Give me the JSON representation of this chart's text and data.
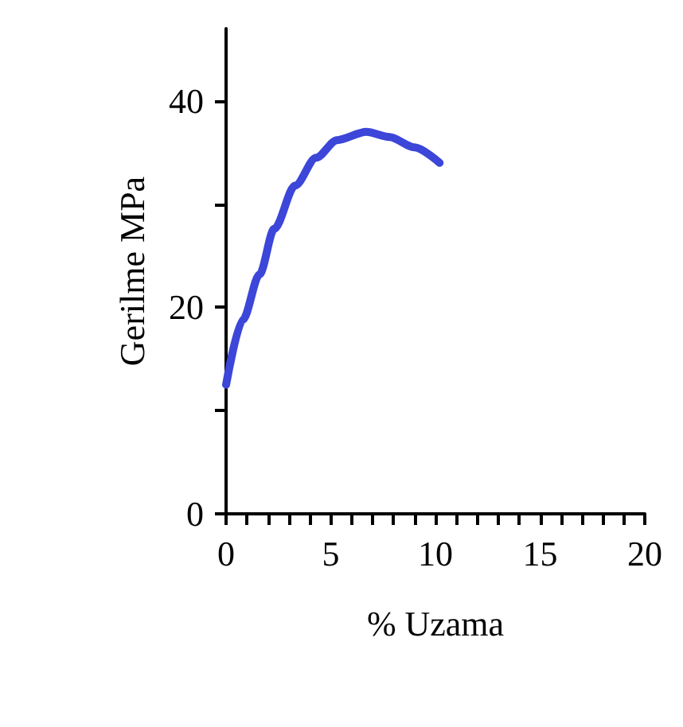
{
  "chart_data": {
    "type": "line",
    "xlabel": "% Uzama",
    "ylabel": "Gerilme MPa",
    "x": [
      0,
      0.8,
      1.6,
      2.3,
      3.3,
      4.3,
      5.3,
      6.7,
      7.8,
      9.0,
      10.2
    ],
    "series": [
      {
        "color": "#3c46d8",
        "values": [
          12.5,
          18.8,
          23.2,
          27.6,
          31.8,
          34.5,
          36.2,
          37.0,
          36.5,
          35.5,
          34.0
        ]
      }
    ],
    "xlim": [
      0,
      20
    ],
    "xticks": [
      0,
      {
        "value": 1,
        "label": null
      },
      {
        "value": 2,
        "label": null
      },
      {
        "value": 3,
        "label": null
      },
      {
        "value": 4,
        "label": null
      },
      5,
      {
        "value": 6,
        "label": null
      },
      {
        "value": 7,
        "label": null
      },
      {
        "value": 8,
        "label": null
      },
      {
        "value": 9,
        "label": null
      },
      10,
      {
        "value": 11,
        "label": null
      },
      {
        "value": 12,
        "label": null
      },
      {
        "value": 13,
        "label": null
      },
      {
        "value": 14,
        "label": null
      },
      15,
      {
        "value": 16,
        "label": null
      },
      {
        "value": 17,
        "label": null
      },
      {
        "value": 18,
        "label": null
      },
      {
        "value": 19,
        "label": null
      },
      20
    ],
    "ylim": [
      0,
      47
    ],
    "yticks": [
      0,
      {
        "value": 10,
        "label": null
      },
      20,
      {
        "value": 30,
        "label": null
      },
      40
    ],
    "grid": false,
    "marker": "none",
    "line_style": "solid"
  }
}
